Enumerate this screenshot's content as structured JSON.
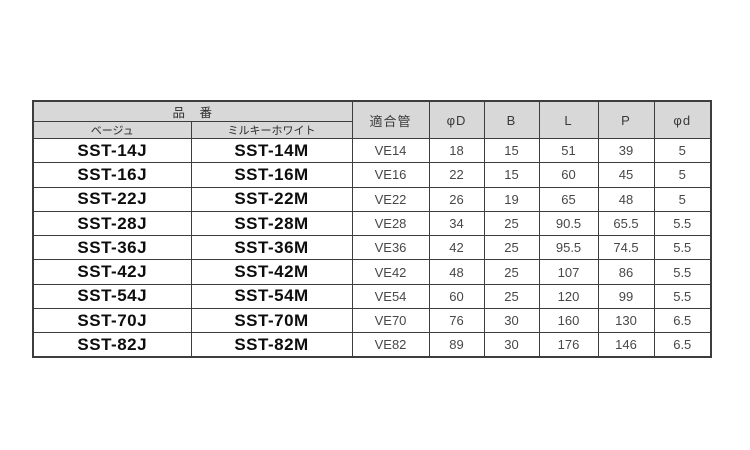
{
  "table": {
    "header": {
      "part_number_group": "品　番",
      "sub_beige": "ベージュ",
      "sub_milky_white": "ミルキーホワイト",
      "col_pipe": "適合管",
      "col_phiD": "φD",
      "col_B": "B",
      "col_L": "L",
      "col_P": "P",
      "col_phid": "φd"
    },
    "column_keys": [
      "beige",
      "milky",
      "pipe",
      "phiD",
      "B",
      "L",
      "P",
      "phid"
    ],
    "rows": [
      {
        "beige": "SST-14J",
        "milky": "SST-14M",
        "pipe": "VE14",
        "phiD": "18",
        "B": "15",
        "L": "51",
        "P": "39",
        "phid": "5"
      },
      {
        "beige": "SST-16J",
        "milky": "SST-16M",
        "pipe": "VE16",
        "phiD": "22",
        "B": "15",
        "L": "60",
        "P": "45",
        "phid": "5"
      },
      {
        "beige": "SST-22J",
        "milky": "SST-22M",
        "pipe": "VE22",
        "phiD": "26",
        "B": "19",
        "L": "65",
        "P": "48",
        "phid": "5"
      },
      {
        "beige": "SST-28J",
        "milky": "SST-28M",
        "pipe": "VE28",
        "phiD": "34",
        "B": "25",
        "L": "90.5",
        "P": "65.5",
        "phid": "5.5"
      },
      {
        "beige": "SST-36J",
        "milky": "SST-36M",
        "pipe": "VE36",
        "phiD": "42",
        "B": "25",
        "L": "95.5",
        "P": "74.5",
        "phid": "5.5"
      },
      {
        "beige": "SST-42J",
        "milky": "SST-42M",
        "pipe": "VE42",
        "phiD": "48",
        "B": "25",
        "L": "107",
        "P": "86",
        "phid": "5.5"
      },
      {
        "beige": "SST-54J",
        "milky": "SST-54M",
        "pipe": "VE54",
        "phiD": "60",
        "B": "25",
        "L": "120",
        "P": "99",
        "phid": "5.5"
      },
      {
        "beige": "SST-70J",
        "milky": "SST-70M",
        "pipe": "VE70",
        "phiD": "76",
        "B": "30",
        "L": "160",
        "P": "130",
        "phid": "6.5"
      },
      {
        "beige": "SST-82J",
        "milky": "SST-82M",
        "pipe": "VE82",
        "phiD": "89",
        "B": "30",
        "L": "176",
        "P": "146",
        "phid": "6.5"
      }
    ]
  },
  "colors": {
    "header_bg": "#d8d8d8",
    "border": "#3d3d3d",
    "part_text": "#0d0d0d",
    "num_text": "#474747"
  }
}
